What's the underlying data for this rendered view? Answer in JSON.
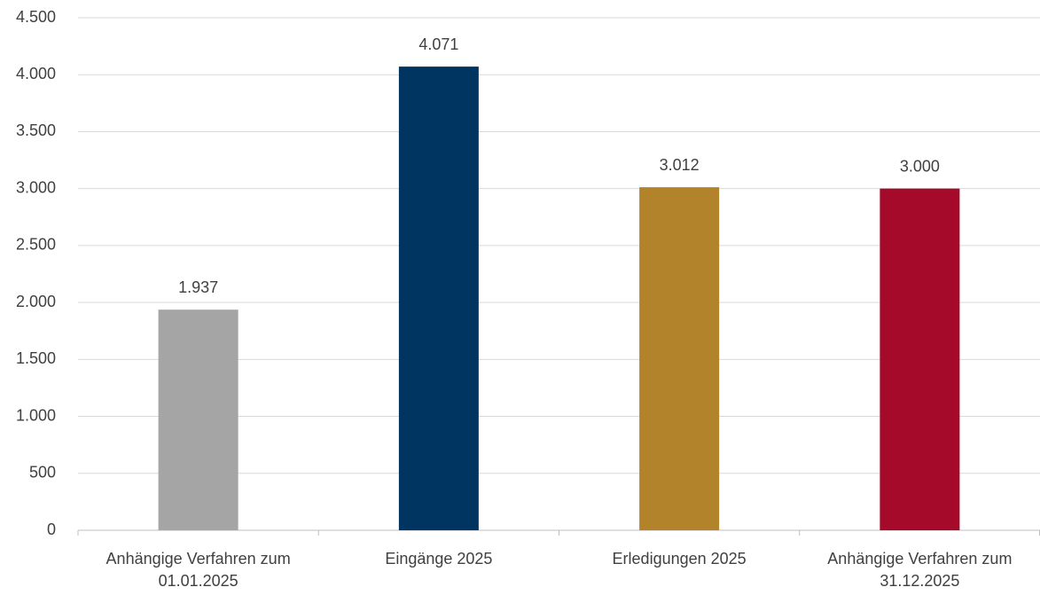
{
  "chart_data": {
    "type": "bar",
    "categories": [
      "Anhängige Verfahren zum 01.01.2025",
      "Eingänge 2025",
      "Erledigungen 2025",
      "Anhängige Verfahren zum 31.12.2025"
    ],
    "values": [
      1937,
      4071,
      3012,
      3000
    ],
    "value_labels": [
      "1.937",
      "4.071",
      "3.012",
      "3.000"
    ],
    "colors": [
      "#a5a5a5",
      "#003461",
      "#b3832b",
      "#a50a2a"
    ],
    "ylim": [
      0,
      4500
    ],
    "yticks": [
      0,
      500,
      {
        "value": 1000,
        "label": "1.000"
      },
      {
        "value": 1500,
        "label": "1.500"
      },
      {
        "value": 2000,
        "label": "2.000"
      },
      {
        "value": 2500,
        "label": "2.500"
      },
      {
        "value": 3000,
        "label": "3.000"
      },
      {
        "value": 3500,
        "label": "3.500"
      },
      {
        "value": 4000,
        "label": "4.000"
      },
      {
        "value": 4500,
        "label": "4.500"
      }
    ],
    "grid": true
  }
}
